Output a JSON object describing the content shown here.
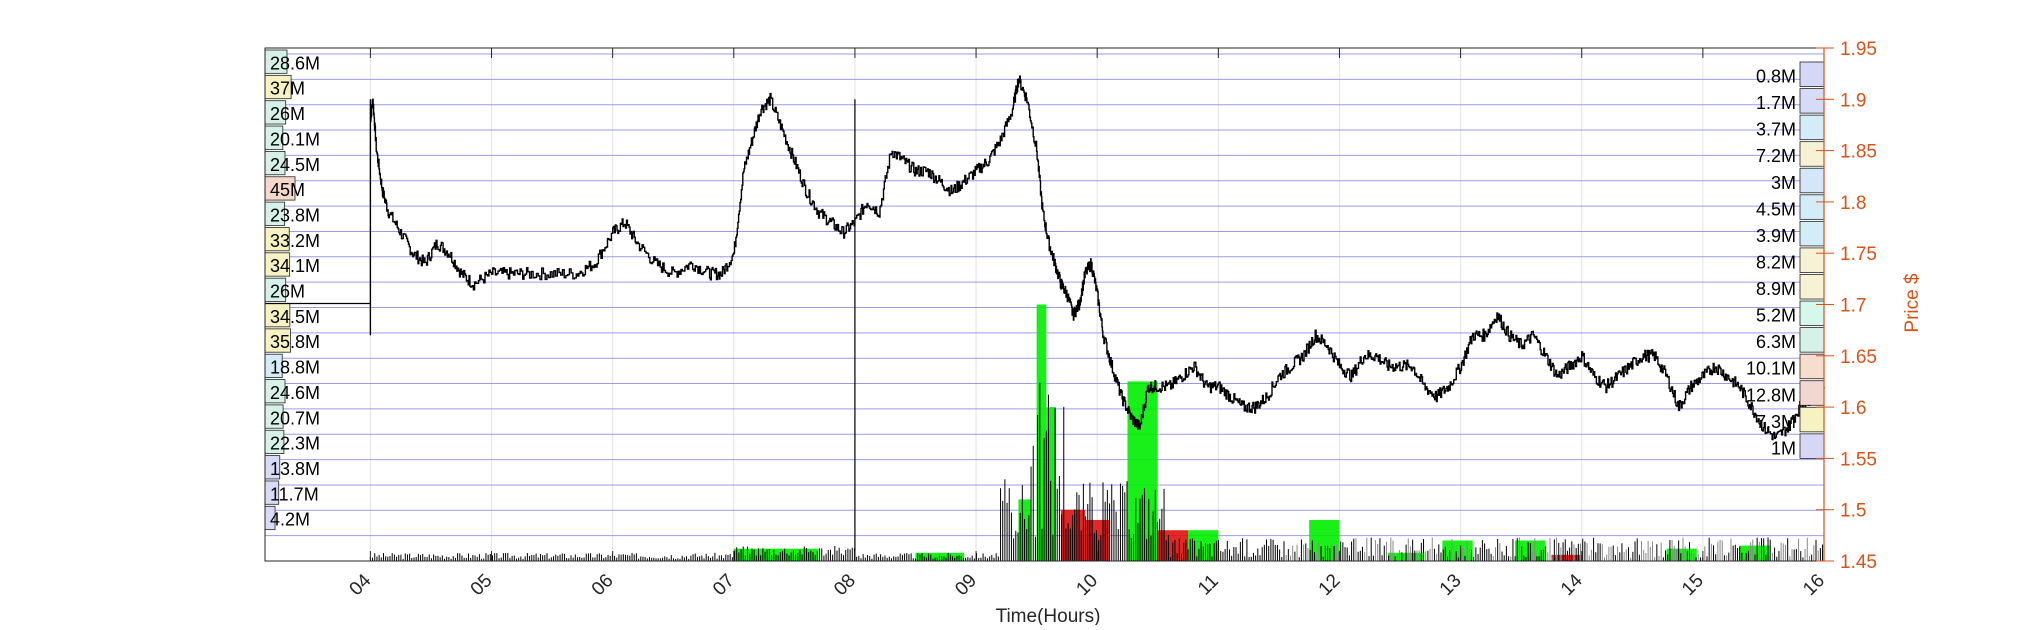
{
  "chart_data": {
    "type": "line",
    "xlabel": "Time(Hours)",
    "ylabel_right": "Price $",
    "x_ticks": [
      "04",
      "05",
      "06",
      "07",
      "08",
      "09",
      "10",
      "11",
      "12",
      "13",
      "14",
      "15",
      "16"
    ],
    "x_range": [
      3.13,
      16.0
    ],
    "y_right_range": [
      1.45,
      1.95
    ],
    "y_right_ticks": [
      1.45,
      1.5,
      1.55,
      1.6,
      1.65,
      1.7,
      1.75,
      1.8,
      1.85,
      1.9,
      1.95
    ],
    "grid": true,
    "series": [
      {
        "type": "line",
        "color": "#000000",
        "x": [
          4.0,
          4.02,
          4.05,
          4.1,
          4.15,
          4.25,
          4.35,
          4.45,
          4.55,
          4.65,
          4.75,
          4.85,
          5.0,
          5.15,
          5.3,
          5.5,
          5.7,
          5.85,
          6.0,
          6.1,
          6.2,
          6.35,
          6.5,
          6.65,
          6.8,
          6.9,
          7.0,
          7.08,
          7.15,
          7.22,
          7.3,
          7.4,
          7.5,
          7.6,
          7.7,
          7.8,
          7.9,
          8.0,
          8.1,
          8.2,
          8.3,
          8.4,
          8.5,
          8.6,
          8.7,
          8.8,
          8.9,
          9.0,
          9.1,
          9.2,
          9.3,
          9.35,
          9.42,
          9.5,
          9.55,
          9.6,
          9.65,
          9.7,
          9.75,
          9.8,
          9.85,
          9.9,
          9.95,
          10.0,
          10.05,
          10.12,
          10.2,
          10.28,
          10.35,
          10.42,
          10.5,
          10.6,
          10.7,
          10.8,
          10.9,
          11.0,
          11.1,
          11.2,
          11.3,
          11.4,
          11.5,
          11.6,
          11.7,
          11.8,
          11.9,
          12.0,
          12.1,
          12.2,
          12.3,
          12.4,
          12.5,
          12.6,
          12.7,
          12.8,
          12.9,
          13.0,
          13.1,
          13.2,
          13.3,
          13.4,
          13.5,
          13.6,
          13.7,
          13.8,
          13.9,
          14.0,
          14.1,
          14.2,
          14.3,
          14.4,
          14.5,
          14.6,
          14.7,
          14.8,
          14.9,
          15.0,
          15.1,
          15.2,
          15.3,
          15.4,
          15.5,
          15.6,
          15.7,
          15.8,
          15.9,
          16.0
        ],
        "y": [
          1.88,
          1.9,
          1.85,
          1.81,
          1.79,
          1.77,
          1.75,
          1.74,
          1.76,
          1.75,
          1.73,
          1.72,
          1.73,
          1.73,
          1.73,
          1.73,
          1.73,
          1.74,
          1.77,
          1.78,
          1.76,
          1.74,
          1.73,
          1.74,
          1.73,
          1.73,
          1.75,
          1.83,
          1.86,
          1.89,
          1.9,
          1.87,
          1.84,
          1.81,
          1.79,
          1.78,
          1.77,
          1.78,
          1.8,
          1.79,
          1.85,
          1.84,
          1.83,
          1.83,
          1.82,
          1.81,
          1.82,
          1.83,
          1.84,
          1.86,
          1.89,
          1.92,
          1.9,
          1.85,
          1.79,
          1.76,
          1.74,
          1.72,
          1.71,
          1.69,
          1.7,
          1.73,
          1.74,
          1.71,
          1.67,
          1.64,
          1.61,
          1.59,
          1.58,
          1.62,
          1.62,
          1.62,
          1.63,
          1.64,
          1.62,
          1.62,
          1.61,
          1.6,
          1.6,
          1.61,
          1.63,
          1.64,
          1.65,
          1.67,
          1.66,
          1.64,
          1.63,
          1.65,
          1.65,
          1.64,
          1.64,
          1.64,
          1.62,
          1.61,
          1.62,
          1.64,
          1.67,
          1.67,
          1.69,
          1.67,
          1.66,
          1.67,
          1.65,
          1.63,
          1.64,
          1.65,
          1.63,
          1.62,
          1.63,
          1.64,
          1.65,
          1.65,
          1.63,
          1.6,
          1.62,
          1.63,
          1.64,
          1.63,
          1.62,
          1.6,
          1.58,
          1.57,
          1.58,
          1.6,
          1.61,
          1.62
        ]
      }
    ],
    "left_volume_labels": [
      "28.6M",
      "37M",
      "26M",
      "20.1M",
      "24.5M",
      "45M",
      "23.8M",
      "33.2M",
      "34.1M",
      "26M",
      "34.5M",
      "35.8M",
      "18.8M",
      "24.6M",
      "20.7M",
      "22.3M",
      "13.8M",
      "11.7M",
      "4.2M"
    ],
    "left_volume_values": [
      28.6,
      37,
      26,
      20.1,
      24.5,
      45,
      23.8,
      33.2,
      34.1,
      26,
      34.5,
      35.8,
      18.8,
      24.6,
      20.7,
      22.3,
      13.8,
      11.7,
      4.2
    ],
    "right_volume_labels": [
      "0.8M",
      "1.7M",
      "3.7M",
      "7.2M",
      "3M",
      "4.5M",
      "3.9M",
      "8.2M",
      "8.9M",
      "5.2M",
      "6.3M",
      "10.1M",
      "12.8M",
      "7.3M",
      "1M"
    ],
    "right_volume_values": [
      0.8,
      1.7,
      3.7,
      7.2,
      3,
      4.5,
      3.9,
      8.2,
      8.9,
      5.2,
      6.3,
      10.1,
      12.8,
      7.3,
      1
    ],
    "volume_series_colors": {
      "up": "#00ee00",
      "down": "#dd1111",
      "trade": "#000000",
      "axis": "#d95319"
    }
  }
}
